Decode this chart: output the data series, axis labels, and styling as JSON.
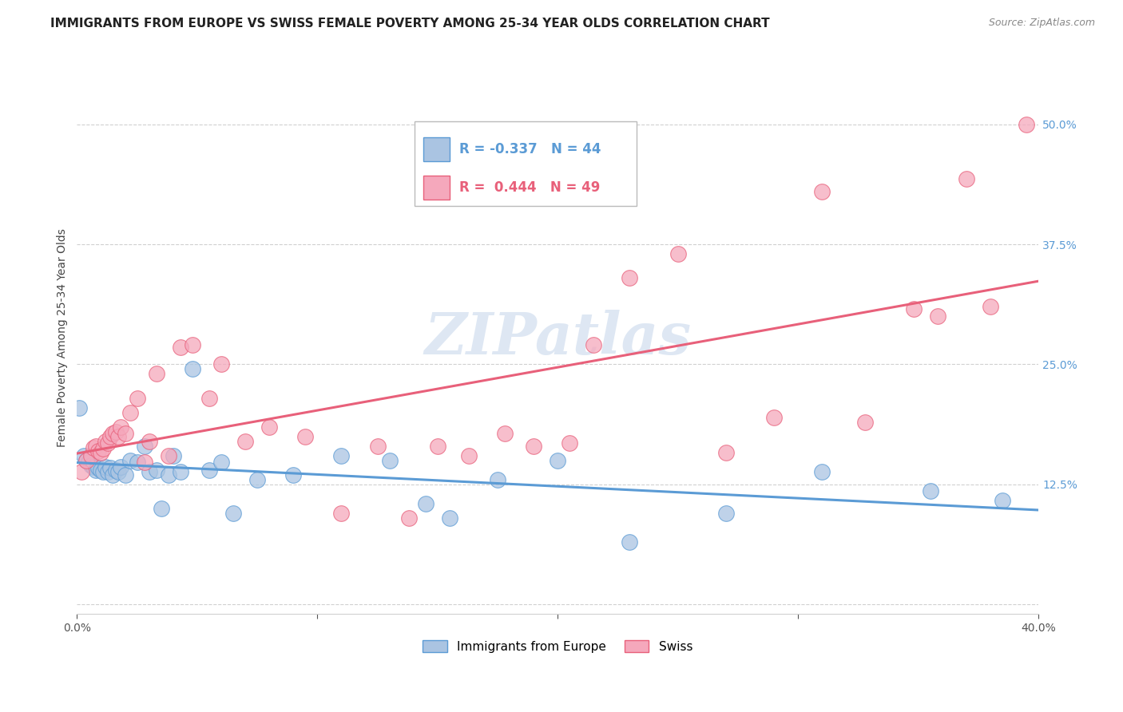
{
  "title": "IMMIGRANTS FROM EUROPE VS SWISS FEMALE POVERTY AMONG 25-34 YEAR OLDS CORRELATION CHART",
  "source": "Source: ZipAtlas.com",
  "ylabel": "Female Poverty Among 25-34 Year Olds",
  "legend_label_blue": "Immigrants from Europe",
  "legend_label_pink": "Swiss",
  "r_blue": "-0.337",
  "n_blue": "44",
  "r_pink": "0.444",
  "n_pink": "49",
  "blue_color": "#aac4e2",
  "pink_color": "#f5a8bc",
  "blue_line_color": "#5b9bd5",
  "pink_line_color": "#e8607a",
  "blue_x": [
    0.001,
    0.003,
    0.004,
    0.005,
    0.006,
    0.007,
    0.008,
    0.009,
    0.01,
    0.011,
    0.012,
    0.013,
    0.014,
    0.015,
    0.016,
    0.017,
    0.018,
    0.02,
    0.022,
    0.025,
    0.028,
    0.03,
    0.033,
    0.035,
    0.038,
    0.04,
    0.043,
    0.048,
    0.055,
    0.06,
    0.065,
    0.075,
    0.09,
    0.11,
    0.13,
    0.145,
    0.155,
    0.175,
    0.2,
    0.23,
    0.27,
    0.31,
    0.355,
    0.385
  ],
  "blue_y": [
    0.205,
    0.155,
    0.15,
    0.148,
    0.145,
    0.143,
    0.14,
    0.142,
    0.14,
    0.138,
    0.143,
    0.138,
    0.142,
    0.135,
    0.14,
    0.138,
    0.143,
    0.135,
    0.15,
    0.148,
    0.165,
    0.138,
    0.14,
    0.1,
    0.135,
    0.155,
    0.138,
    0.245,
    0.14,
    0.148,
    0.095,
    0.13,
    0.135,
    0.155,
    0.15,
    0.105,
    0.09,
    0.13,
    0.15,
    0.065,
    0.095,
    0.138,
    0.118,
    0.108
  ],
  "pink_x": [
    0.002,
    0.004,
    0.006,
    0.007,
    0.008,
    0.009,
    0.01,
    0.011,
    0.012,
    0.013,
    0.014,
    0.015,
    0.016,
    0.017,
    0.018,
    0.02,
    0.022,
    0.025,
    0.028,
    0.03,
    0.033,
    0.038,
    0.043,
    0.048,
    0.055,
    0.06,
    0.07,
    0.08,
    0.095,
    0.11,
    0.125,
    0.138,
    0.15,
    0.163,
    0.178,
    0.19,
    0.205,
    0.215,
    0.23,
    0.25,
    0.27,
    0.29,
    0.31,
    0.328,
    0.348,
    0.358,
    0.37,
    0.38,
    0.395
  ],
  "pink_y": [
    0.138,
    0.15,
    0.155,
    0.163,
    0.165,
    0.16,
    0.158,
    0.162,
    0.17,
    0.168,
    0.175,
    0.178,
    0.18,
    0.175,
    0.185,
    0.178,
    0.2,
    0.215,
    0.148,
    0.17,
    0.24,
    0.155,
    0.268,
    0.27,
    0.215,
    0.25,
    0.17,
    0.185,
    0.175,
    0.095,
    0.165,
    0.09,
    0.165,
    0.155,
    0.178,
    0.165,
    0.168,
    0.27,
    0.34,
    0.365,
    0.158,
    0.195,
    0.43,
    0.19,
    0.308,
    0.3,
    0.443,
    0.31,
    0.5
  ],
  "watermark": "ZIPatlas",
  "xlim": [
    0.0,
    0.4
  ],
  "ylim": [
    -0.01,
    0.565
  ],
  "ytick_values": [
    0.0,
    0.125,
    0.25,
    0.375,
    0.5
  ],
  "ytick_labels": [
    "",
    "12.5%",
    "25.0%",
    "37.5%",
    "50.0%"
  ],
  "xtick_values": [
    0.0,
    0.1,
    0.2,
    0.3,
    0.4
  ],
  "xtick_labels": [
    "0.0%",
    "",
    "",
    "",
    "40.0%"
  ],
  "grid_color": "#d0d0d0",
  "background_color": "#ffffff",
  "title_fontsize": 11,
  "source_fontsize": 9,
  "tick_fontsize": 10,
  "ylabel_fontsize": 10,
  "watermark_color": "#c8d8ec",
  "watermark_alpha": 0.6
}
